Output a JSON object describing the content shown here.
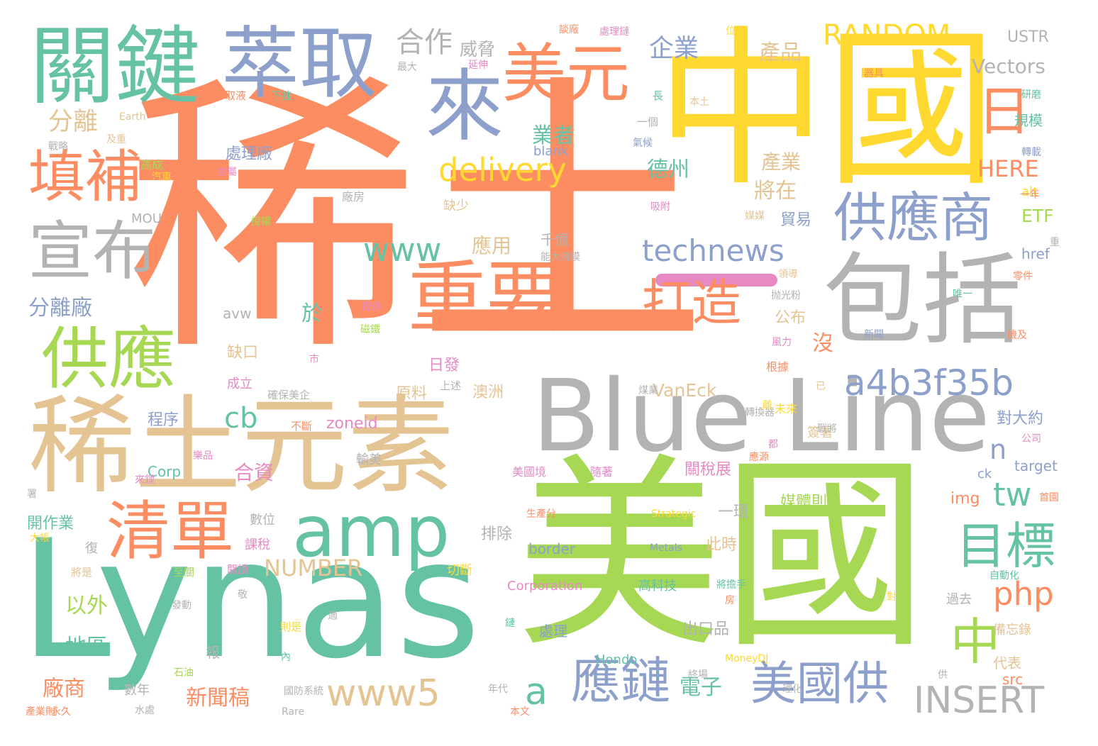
{
  "palette": {
    "orange": "#fc8d62",
    "green": "#66c2a5",
    "blue": "#8da0cb",
    "pink": "#e78ac3",
    "lime": "#a6d854",
    "yellow": "#ffd92f",
    "tan": "#e5c494",
    "gray": "#b3b3b3"
  },
  "words": [
    {
      "text": "稀土",
      "color": "orange"
    },
    {
      "text": "美國",
      "color": "lime"
    },
    {
      "text": "中國",
      "color": "yellow"
    },
    {
      "text": "Lynas",
      "color": "green"
    },
    {
      "text": "稀土元素",
      "color": "tan"
    },
    {
      "text": "Blue Line",
      "color": "gray"
    },
    {
      "text": "包括",
      "color": "gray"
    },
    {
      "text": "關鍵",
      "color": "green"
    },
    {
      "text": "萃取",
      "color": "blue"
    },
    {
      "text": "重要",
      "color": "orange"
    },
    {
      "text": "來",
      "color": "blue"
    },
    {
      "text": "美元",
      "color": "orange"
    },
    {
      "text": "amp",
      "color": "green"
    },
    {
      "text": "宣布",
      "color": "gray"
    },
    {
      "text": "清單",
      "color": "orange"
    },
    {
      "text": "供應",
      "color": "lime"
    },
    {
      "text": "填補",
      "color": "orange"
    },
    {
      "text": "供應商",
      "color": "blue"
    },
    {
      "text": "目標",
      "color": "green"
    },
    {
      "text": "打造",
      "color": "orange"
    },
    {
      "text": "應鏈",
      "color": "blue"
    },
    {
      "text": "美國供",
      "color": "blue"
    },
    {
      "text": "a4b3f35b",
      "color": "blue"
    },
    {
      "text": "technews",
      "color": "blue"
    },
    {
      "text": "delivery",
      "color": "yellow"
    },
    {
      "text": "www5",
      "color": "tan"
    },
    {
      "text": "INSERT",
      "color": "gray"
    },
    {
      "text": "RANDOM",
      "color": "yellow"
    },
    {
      "text": "日",
      "color": "orange"
    },
    {
      "text": "中",
      "color": "lime"
    },
    {
      "text": "www",
      "color": "green"
    },
    {
      "text": "php",
      "color": "orange"
    },
    {
      "text": "a",
      "color": "green"
    },
    {
      "text": "tw",
      "color": "green"
    },
    {
      "text": "cb",
      "color": "green"
    },
    {
      "text": "n",
      "color": "blue"
    },
    {
      "text": "合作",
      "color": "gray"
    },
    {
      "text": "企業",
      "color": "blue"
    },
    {
      "text": "產品",
      "color": "tan"
    },
    {
      "text": "威脅",
      "color": "gray"
    },
    {
      "text": "Vectors",
      "color": "gray"
    },
    {
      "text": "USTR",
      "color": "gray"
    },
    {
      "text": "HERE",
      "color": "orange"
    },
    {
      "text": "ETF",
      "color": "lime"
    },
    {
      "text": "NUMBER",
      "color": "tan"
    },
    {
      "text": "VanEck",
      "color": "tan"
    },
    {
      "text": "分離",
      "color": "tan"
    },
    {
      "text": "分離廠",
      "color": "blue"
    },
    {
      "text": "業者",
      "color": "green"
    },
    {
      "text": "德州",
      "color": "green"
    },
    {
      "text": "產業",
      "color": "tan"
    },
    {
      "text": "將在",
      "color": "tan"
    },
    {
      "text": "應用",
      "color": "tan"
    },
    {
      "text": "處理廠",
      "color": "blue"
    },
    {
      "text": "合資",
      "color": "pink"
    },
    {
      "text": "以外",
      "color": "lime"
    },
    {
      "text": "地區",
      "color": "green"
    },
    {
      "text": "廠商",
      "color": "orange"
    },
    {
      "text": "新聞稿",
      "color": "orange"
    },
    {
      "text": "電子",
      "color": "green"
    },
    {
      "text": "貿易",
      "color": "blue"
    },
    {
      "text": "公布",
      "color": "tan"
    },
    {
      "text": "於",
      "color": "green"
    },
    {
      "text": "沒",
      "color": "orange"
    },
    {
      "text": "缺口",
      "color": "tan"
    },
    {
      "text": "日發",
      "color": "pink"
    },
    {
      "text": "原料",
      "color": "tan"
    },
    {
      "text": "澳洲",
      "color": "tan"
    },
    {
      "text": "程序",
      "color": "blue"
    },
    {
      "text": "zoneid",
      "color": "pink"
    },
    {
      "text": "對大約",
      "color": "blue"
    },
    {
      "text": "關稅展",
      "color": "pink"
    },
    {
      "text": "媒體則",
      "color": "lime"
    },
    {
      "text": "img",
      "color": "orange"
    },
    {
      "text": "target",
      "color": "blue"
    },
    {
      "text": "一環",
      "color": "gray"
    },
    {
      "text": "此時",
      "color": "tan"
    },
    {
      "text": "排除",
      "color": "gray"
    },
    {
      "text": "border",
      "color": "blue"
    },
    {
      "text": "Corporation",
      "color": "pink"
    },
    {
      "text": "高科技",
      "color": "green"
    },
    {
      "text": "出口品",
      "color": "gray"
    },
    {
      "text": "處理",
      "color": "blue"
    },
    {
      "text": "過去",
      "color": "gray"
    },
    {
      "text": "備忘錄",
      "color": "tan"
    },
    {
      "text": "代表",
      "color": "tan"
    },
    {
      "text": "src",
      "color": "orange"
    },
    {
      "text": "Hondo",
      "color": "green"
    },
    {
      "text": "開作業",
      "color": "green"
    },
    {
      "text": "Corp",
      "color": "green"
    },
    {
      "text": "千億",
      "color": "gray"
    },
    {
      "text": "規模",
      "color": "green"
    },
    {
      "text": "alt",
      "color": "yellow"
    },
    {
      "text": "href",
      "color": "blue"
    },
    {
      "text": "avw",
      "color": "gray"
    },
    {
      "text": "成立",
      "color": "pink"
    },
    {
      "text": "輸美",
      "color": "gray"
    },
    {
      "text": "數位",
      "color": "gray"
    },
    {
      "text": "課稅",
      "color": "pink"
    },
    {
      "text": "復",
      "color": "gray"
    },
    {
      "text": "切斷",
      "color": "yellow"
    },
    {
      "text": "報",
      "color": "gray"
    },
    {
      "text": "數年",
      "color": "gray"
    },
    {
      "text": "將是",
      "color": "tan"
    },
    {
      "text": "至關",
      "color": "lime"
    },
    {
      "text": "則是",
      "color": "yellow"
    },
    {
      "text": "美國境",
      "color": "pink"
    },
    {
      "text": "隨著",
      "color": "pink"
    },
    {
      "text": "簽署",
      "color": "tan"
    },
    {
      "text": "根據",
      "color": "orange"
    },
    {
      "text": "未來",
      "color": "yellow"
    },
    {
      "text": "不斷",
      "color": "orange"
    },
    {
      "text": "確保美企",
      "color": "gray"
    },
    {
      "text": "上述",
      "color": "gray"
    },
    {
      "text": "ck",
      "color": "blue"
    },
    {
      "text": "blank",
      "color": "blue"
    },
    {
      "text": "缺少",
      "color": "tan"
    },
    {
      "text": "廠房",
      "color": "gray"
    },
    {
      "text": "MOU",
      "color": "gray"
    },
    {
      "text": "高成",
      "color": "lime"
    },
    {
      "text": "及重",
      "color": "tan"
    },
    {
      "text": "戰略",
      "color": "gray"
    },
    {
      "text": "Earth",
      "color": "tan"
    },
    {
      "text": "萃取液",
      "color": "orange"
    },
    {
      "text": "下挫",
      "color": "green"
    },
    {
      "text": "兩家",
      "color": "orange"
    },
    {
      "text": "最大",
      "color": "gray"
    },
    {
      "text": "延伸",
      "color": "pink"
    },
    {
      "text": "談廠",
      "color": "orange"
    },
    {
      "text": "處理鏈",
      "color": "pink"
    },
    {
      "text": "位",
      "color": "yellow"
    },
    {
      "text": "長",
      "color": "green"
    },
    {
      "text": "本土",
      "color": "tan"
    },
    {
      "text": "一個",
      "color": "gray"
    },
    {
      "text": "氣候",
      "color": "blue"
    },
    {
      "text": "器具",
      "color": "orange"
    },
    {
      "text": "研磨",
      "color": "green"
    },
    {
      "text": "轉載",
      "color": "blue"
    },
    {
      "text": "汽車",
      "color": "yellow"
    },
    {
      "text": "金屬",
      "color": "pink"
    },
    {
      "text": "吸附",
      "color": "pink"
    },
    {
      "text": "一年",
      "color": "orange"
    },
    {
      "text": "媒媒",
      "color": "tan"
    },
    {
      "text": "授權",
      "color": "lime"
    },
    {
      "text": "能大規模",
      "color": "gray"
    },
    {
      "text": "抛光粉",
      "color": "gray"
    },
    {
      "text": "零件",
      "color": "orange"
    },
    {
      "text": "唯一",
      "color": "green"
    },
    {
      "text": "領導",
      "color": "tan"
    },
    {
      "text": "提供",
      "color": "pink"
    },
    {
      "text": "磁鐵",
      "color": "lime"
    },
    {
      "text": "新聞",
      "color": "blue"
    },
    {
      "text": "機及",
      "color": "orange"
    },
    {
      "text": "風力",
      "color": "pink"
    },
    {
      "text": "市",
      "color": "pink"
    },
    {
      "text": "已",
      "color": "tan"
    },
    {
      "text": "煤業",
      "color": "gray"
    },
    {
      "text": "轉換器",
      "color": "gray"
    },
    {
      "text": "戰將",
      "color": "gray"
    },
    {
      "text": "都",
      "color": "pink"
    },
    {
      "text": "應源",
      "color": "orange"
    },
    {
      "text": "公司",
      "color": "pink"
    },
    {
      "text": "首園",
      "color": "orange"
    },
    {
      "text": "樂品",
      "color": "pink"
    },
    {
      "text": "來鋰",
      "color": "pink"
    },
    {
      "text": "大帳",
      "color": "yellow"
    },
    {
      "text": "生產分",
      "color": "orange"
    },
    {
      "text": "Strategic",
      "color": "yellow"
    },
    {
      "text": "Metals",
      "color": "blue"
    },
    {
      "text": "自動化",
      "color": "green"
    },
    {
      "text": "將擔手",
      "color": "green"
    },
    {
      "text": "房",
      "color": "orange"
    },
    {
      "text": "閱讀",
      "color": "pink"
    },
    {
      "text": "敬",
      "color": "gray"
    },
    {
      "text": "發動",
      "color": "gray"
    },
    {
      "text": "適",
      "color": "gray"
    },
    {
      "text": "鏈",
      "color": "green"
    },
    {
      "text": "內",
      "color": "green"
    },
    {
      "text": "MoneyDJ",
      "color": "yellow"
    },
    {
      "text": "終場",
      "color": "gray"
    },
    {
      "text": "石油",
      "color": "lime"
    },
    {
      "text": "國防系統",
      "color": "gray"
    },
    {
      "text": "永久",
      "color": "orange"
    },
    {
      "text": "水處",
      "color": "gray"
    },
    {
      "text": "年代",
      "color": "gray"
    },
    {
      "text": "本文",
      "color": "orange"
    },
    {
      "text": "Rare",
      "color": "gray"
    },
    {
      "text": "產業則",
      "color": "orange"
    },
    {
      "text": "理化",
      "color": "gray"
    },
    {
      "text": "供",
      "color": "gray"
    },
    {
      "text": "署",
      "color": "gray"
    },
    {
      "text": "重",
      "color": "gray"
    },
    {
      "text": "對",
      "color": "yellow"
    },
    {
      "text": "離",
      "color": "yellow"
    }
  ]
}
